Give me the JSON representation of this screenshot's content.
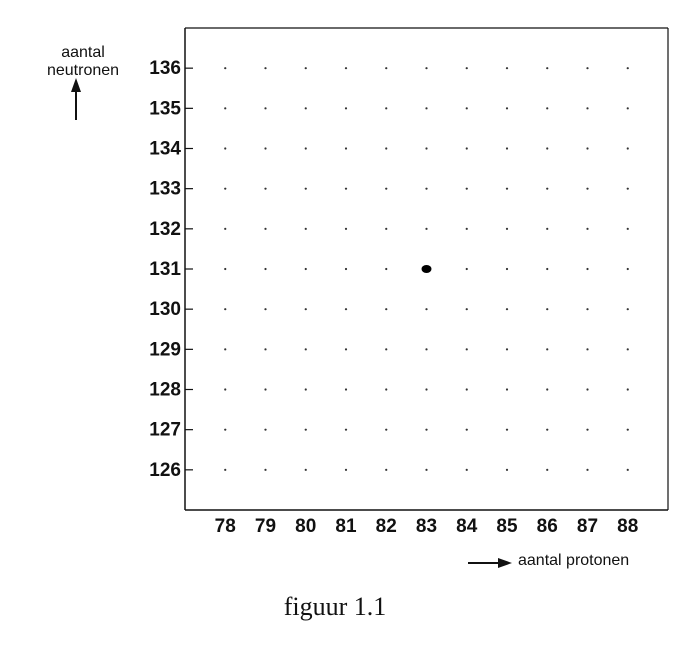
{
  "chart_data": {
    "type": "scatter",
    "ylabel": "aantal neutronen",
    "xlabel": "aantal protonen",
    "caption": "figuur 1.1",
    "x": [
      83
    ],
    "values": [
      131
    ],
    "color": "#000000",
    "xlim": [
      77,
      89
    ],
    "xticks": [
      78,
      79,
      80,
      81,
      82,
      83,
      84,
      85,
      86,
      87,
      88
    ],
    "ylim": [
      125,
      137
    ],
    "yticks": [
      126,
      127,
      128,
      129,
      130,
      131,
      132,
      133,
      134,
      135,
      136
    ],
    "grid": "dots"
  }
}
